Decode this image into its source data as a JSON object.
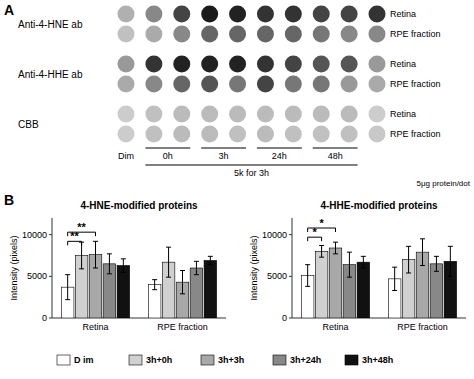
{
  "chart_data": [
    {
      "type": "dot_grid",
      "annotations": [
        "A",
        "5k for 3h",
        "5μg protein/dot"
      ],
      "groups": [
        "Anti-4-HNE ab",
        "Anti-4-HHE ab",
        "CBB"
      ],
      "rows": [
        "Retina",
        "RPE fraction",
        "Retina",
        "RPE fraction",
        "Retina",
        "RPE fraction"
      ],
      "columns": [
        "Dim",
        "0h",
        "3h",
        "24h",
        "48h"
      ],
      "colors": [
        [
          "#b0b0b0",
          "#888888",
          "#444444",
          "#1a1a1a",
          "#222222",
          "#333333",
          "#333333",
          "#444444",
          "#444444",
          "#333333"
        ],
        [
          "#c0c0c0",
          "#aaaaaa",
          "#888888",
          "#666666",
          "#666666",
          "#666666",
          "#666666",
          "#777777",
          "#888888",
          "#888888"
        ],
        [
          "#999999",
          "#333333",
          "#222222",
          "#222222",
          "#222222",
          "#333333",
          "#444444",
          "#555555",
          "#555555",
          "#999999"
        ],
        [
          "#aaaaaa",
          "#888888",
          "#666666",
          "#555555",
          "#777777",
          "#444444",
          "#777777",
          "#777777",
          "#999999",
          "#aaaaaa"
        ],
        [
          "#cccccc",
          "#c0c0c0",
          "#bbbbbb",
          "#bbbbbb",
          "#bbbbbb",
          "#bbbbbb",
          "#bbbbbb",
          "#bbbbbb",
          "#bbbbbb",
          "#cccccc"
        ],
        [
          "#cccccc",
          "#c0c0c0",
          "#bbbbbb",
          "#bbbbbb",
          "#c0c0c0",
          "#bbbbbb",
          "#c0c0c0",
          "#c0c0c0",
          "#c0c0c0",
          "#c8c8c8"
        ]
      ]
    },
    {
      "type": "bar",
      "title": "4-HNE-modified proteins",
      "y_label": "Intensity (pixels)",
      "annotations": [
        "B"
      ],
      "categories": [
        "Retina",
        "RPE fraction"
      ],
      "series": [
        {
          "name": "D im",
          "color": "#ffffff",
          "values": [
            3700,
            4000
          ],
          "errors": [
            1500,
            600
          ]
        },
        {
          "name": "3h+0h",
          "color": "#d0d0d0",
          "values": [
            7500,
            6700
          ],
          "errors": [
            1600,
            1800
          ]
        },
        {
          "name": "3h+3h",
          "color": "#a8a8a8",
          "values": [
            7600,
            4300
          ],
          "errors": [
            1600,
            1400
          ]
        },
        {
          "name": "3h+24h",
          "color": "#888888",
          "values": [
            6500,
            6000
          ],
          "errors": [
            1200,
            800
          ]
        },
        {
          "name": "3h+48h",
          "color": "#111111",
          "values": [
            6300,
            6900
          ],
          "errors": [
            800,
            500
          ]
        }
      ],
      "ylim": [
        0,
        12000
      ],
      "yticks": [
        0,
        5000,
        10000
      ],
      "legend": "bottom",
      "significance": [
        {
          "category": "Retina",
          "series": [
            0,
            1
          ],
          "y": 9200,
          "label": "**"
        },
        {
          "category": "Retina",
          "series": [
            0,
            2
          ],
          "y": 10300,
          "label": "**"
        }
      ]
    },
    {
      "type": "bar",
      "title": "4-HHE-modified proteins",
      "y_label": "Intensity (pixels)",
      "categories": [
        "Retina",
        "RPE fraction"
      ],
      "series": [
        {
          "color": "#ffffff",
          "values": [
            5100,
            4700
          ],
          "errors": [
            1300,
            1400
          ]
        },
        {
          "color": "#d0d0d0",
          "values": [
            8000,
            7000
          ],
          "errors": [
            700,
            1600
          ]
        },
        {
          "color": "#a8a8a8",
          "values": [
            8400,
            7900
          ],
          "errors": [
            700,
            1600
          ]
        },
        {
          "color": "#888888",
          "values": [
            6400,
            6500
          ],
          "errors": [
            1500,
            900
          ]
        },
        {
          "color": "#111111",
          "values": [
            6700,
            6800
          ],
          "errors": [
            700,
            1800
          ]
        }
      ],
      "ylim": [
        0,
        12000
      ],
      "yticks": [
        0,
        5000,
        10000
      ],
      "significance": [
        {
          "category": "Retina",
          "series": [
            0,
            1
          ],
          "y": 9700,
          "label": "*"
        },
        {
          "category": "Retina",
          "series": [
            0,
            2
          ],
          "y": 10800,
          "label": "*"
        }
      ]
    }
  ]
}
